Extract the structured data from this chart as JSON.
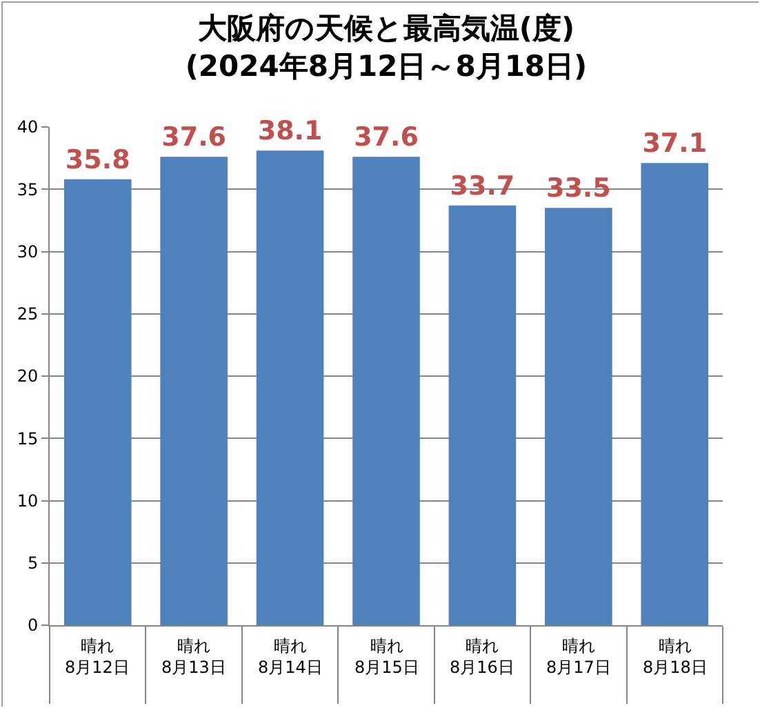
{
  "chart_data": {
    "type": "bar",
    "title": "大阪府の天候と最高気温(度)",
    "subtitle": "(2024年8月12日～8月18日)",
    "categories": [
      "晴れ\n8月12日",
      "晴れ\n8月13日",
      "晴れ\n8月14日",
      "晴れ\n8月15日",
      "晴れ\n8月16日",
      "晴れ\n8月17日",
      "晴れ\n8月18日"
    ],
    "values": [
      35.8,
      37.6,
      38.1,
      37.6,
      33.7,
      33.5,
      37.1
    ],
    "color": "#4f81bd",
    "ylim": [
      0,
      40
    ],
    "yticks": [
      0,
      5,
      10,
      15,
      20,
      25,
      30,
      35,
      40
    ],
    "grid": "y",
    "data_labels": true
  }
}
